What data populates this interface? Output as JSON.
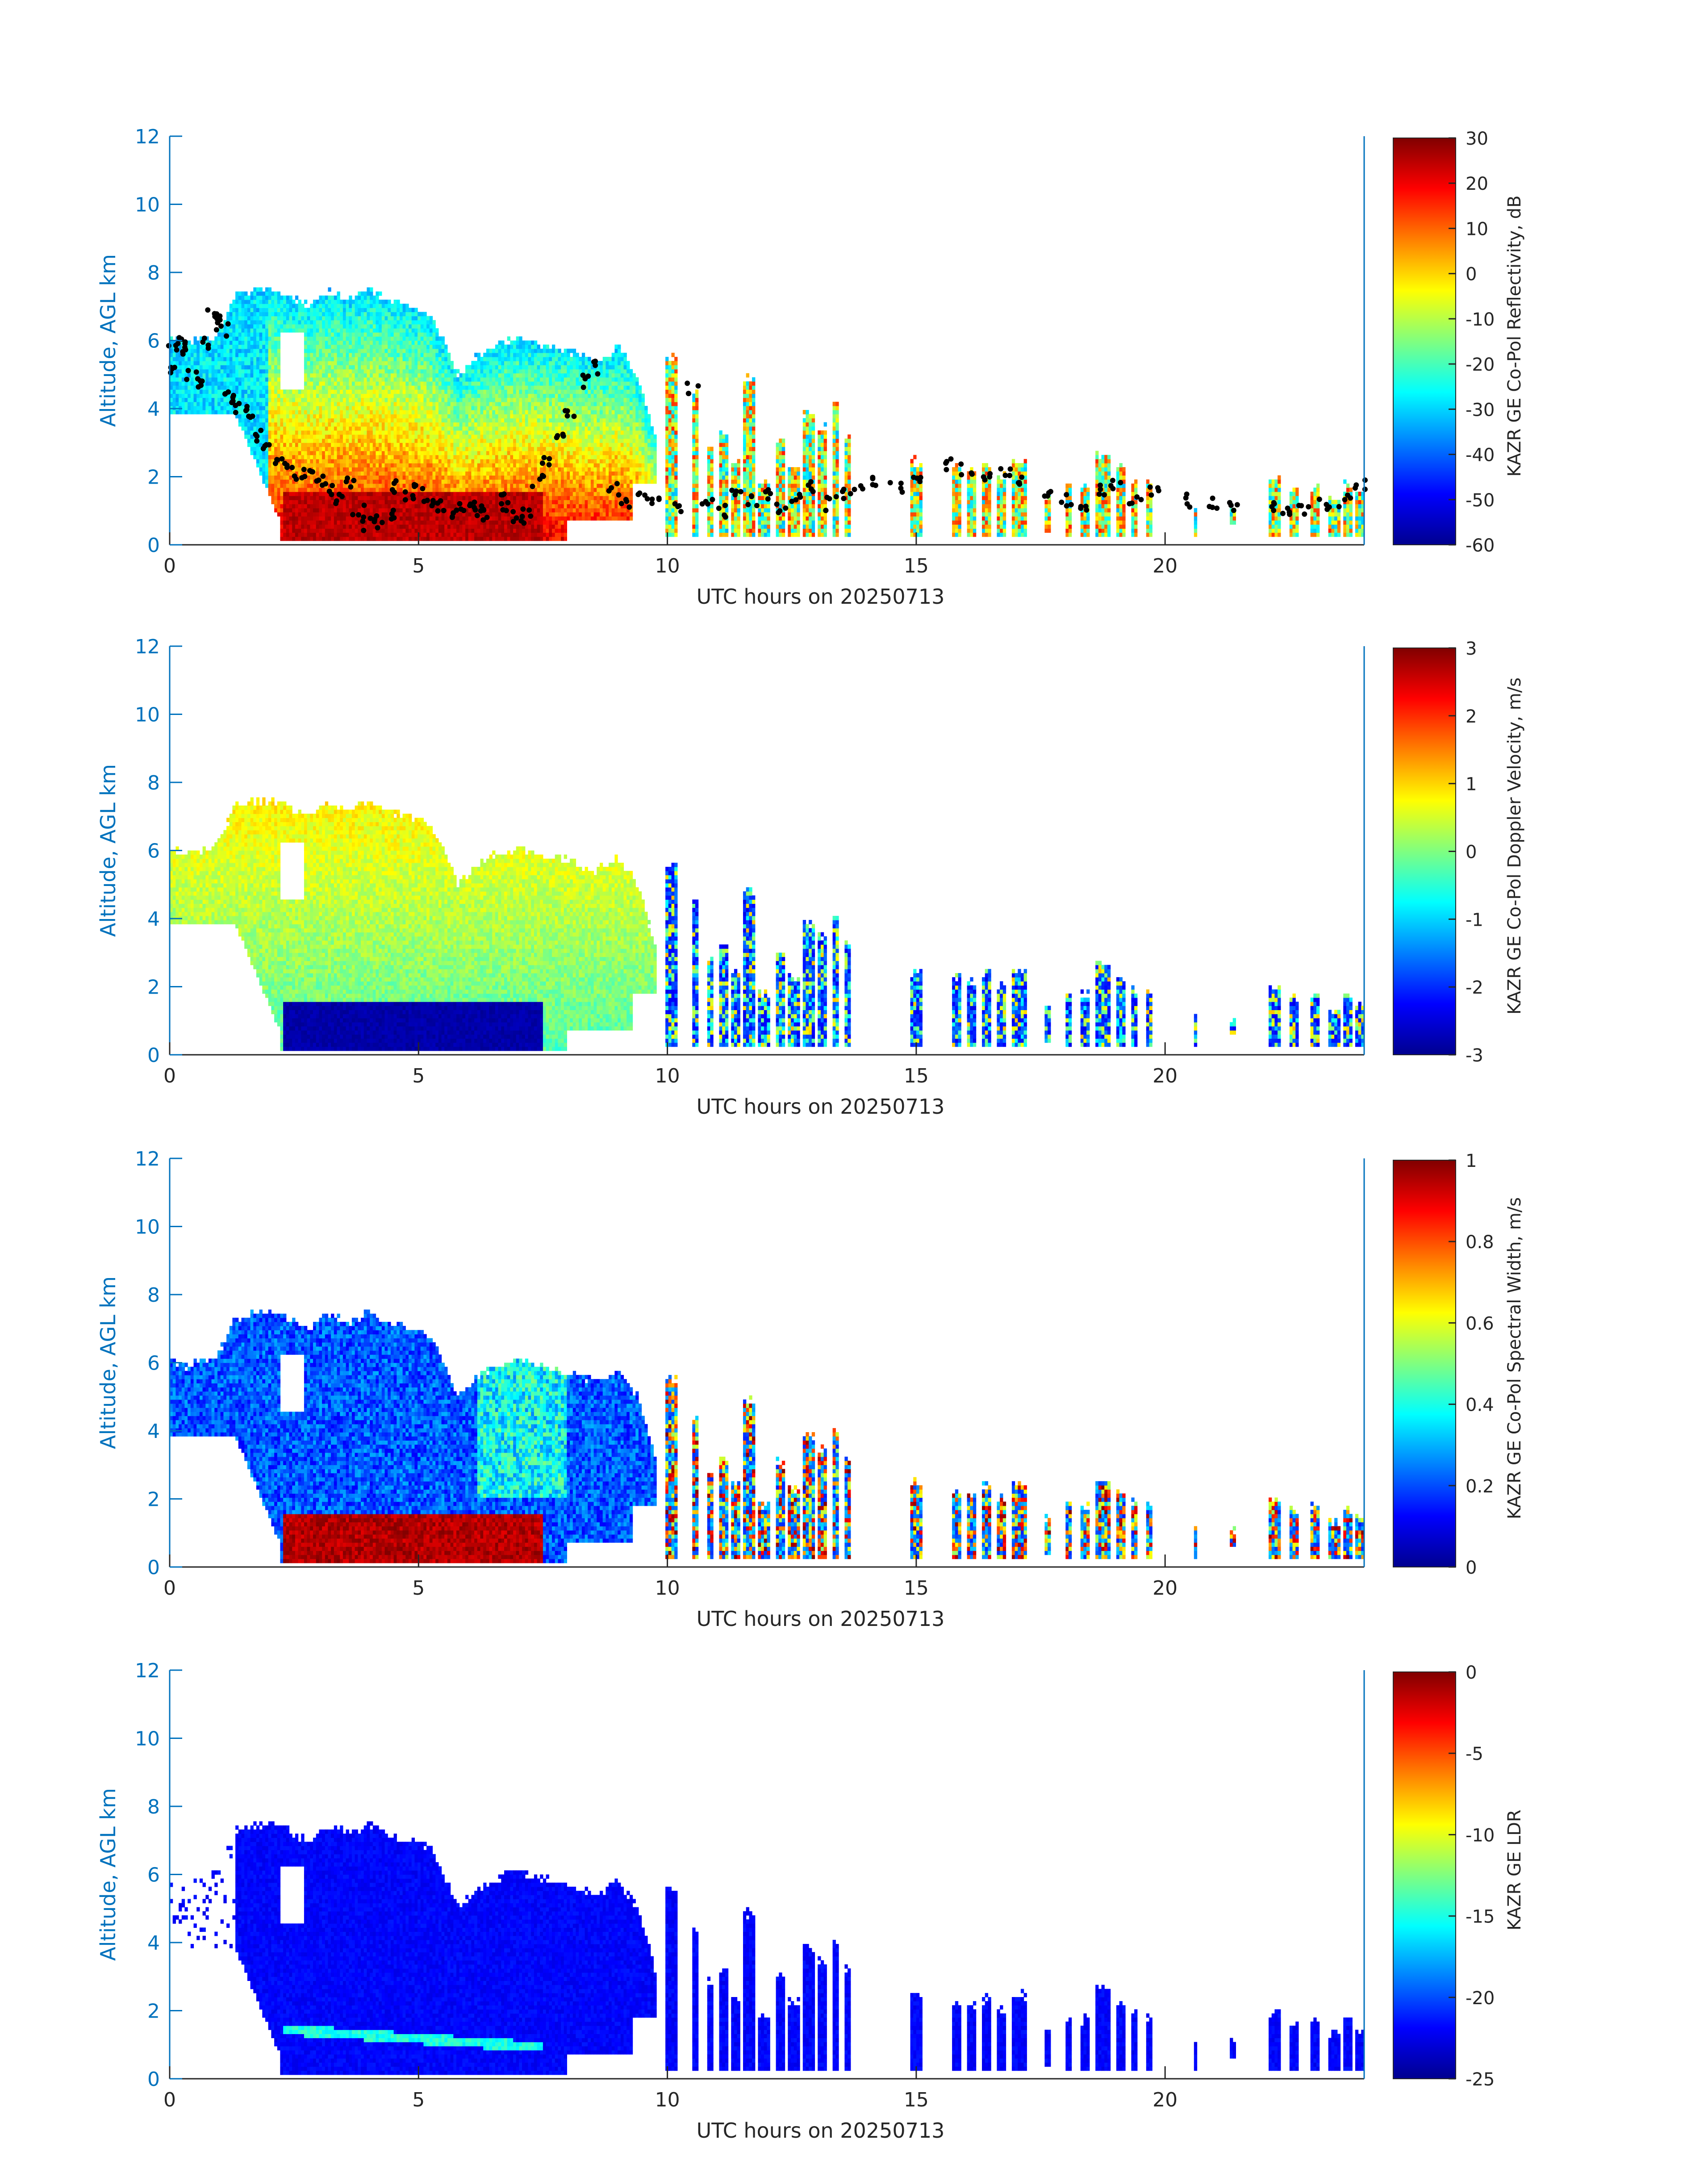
{
  "colors": {
    "axis": "#0072bd",
    "text": "#262626",
    "bg": "#ffffff",
    "marker": "#000000",
    "colormap": "jet"
  },
  "chart_data": [
    {
      "type": "heatmap",
      "title": "",
      "xlabel": "UTC hours on 20250713",
      "ylabel": "Altitude, AGL km",
      "xlim": [
        0,
        24
      ],
      "ylim": [
        0,
        12
      ],
      "xticks": [
        "0",
        "5",
        "10",
        "15",
        "20"
      ],
      "yticks": [
        "0",
        "2",
        "4",
        "6",
        "8",
        "10",
        "12"
      ],
      "colorbar": {
        "label": "KAZR GE Co-Pol Reflectivity, dB",
        "range": [
          -60,
          30
        ],
        "ticks": [
          "30",
          "20",
          "10",
          "0",
          "-10",
          "-20",
          "-30",
          "-40",
          "-50",
          "-60"
        ]
      },
      "cloud_base_markers": true,
      "cloud_base_points": [
        [
          0.0,
          5.2
        ],
        [
          0.1,
          5.8
        ],
        [
          0.2,
          6.0
        ],
        [
          0.3,
          5.6
        ],
        [
          0.45,
          5.0
        ],
        [
          0.6,
          4.8
        ],
        [
          0.75,
          5.9
        ],
        [
          0.85,
          6.7
        ],
        [
          0.95,
          6.6
        ],
        [
          1.05,
          6.3
        ],
        [
          1.15,
          4.4
        ],
        [
          1.3,
          4.2
        ],
        [
          1.45,
          4.0
        ],
        [
          1.6,
          3.8
        ],
        [
          1.8,
          3.2
        ],
        [
          2.0,
          2.8
        ],
        [
          2.2,
          2.4
        ],
        [
          2.4,
          2.2
        ],
        [
          2.6,
          2.1
        ],
        [
          2.8,
          2.0
        ],
        [
          3.0,
          1.9
        ],
        [
          3.2,
          1.6
        ],
        [
          3.4,
          1.4
        ],
        [
          3.6,
          1.9
        ],
        [
          3.8,
          1.0
        ],
        [
          4.0,
          0.6
        ],
        [
          4.2,
          0.7
        ],
        [
          4.4,
          0.9
        ],
        [
          4.6,
          1.7
        ],
        [
          4.8,
          1.5
        ],
        [
          5.0,
          1.6
        ],
        [
          5.2,
          1.3
        ],
        [
          5.4,
          1.1
        ],
        [
          5.6,
          0.9
        ],
        [
          5.8,
          1.2
        ],
        [
          6.0,
          1.3
        ],
        [
          6.2,
          1.0
        ],
        [
          6.4,
          0.9
        ],
        [
          6.6,
          1.4
        ],
        [
          6.8,
          1.1
        ],
        [
          7.0,
          0.8
        ],
        [
          7.2,
          1.0
        ],
        [
          7.4,
          1.9
        ],
        [
          7.6,
          2.4
        ],
        [
          7.8,
          3.2
        ],
        [
          8.0,
          3.9
        ],
        [
          8.3,
          4.8
        ],
        [
          8.6,
          5.2
        ],
        [
          8.9,
          1.6
        ],
        [
          9.2,
          1.3
        ],
        [
          9.5,
          1.5
        ],
        [
          9.8,
          1.2
        ],
        [
          10.2,
          1.1
        ],
        [
          10.5,
          4.6
        ],
        [
          10.8,
          1.2
        ],
        [
          11.1,
          1.0
        ],
        [
          11.4,
          1.6
        ],
        [
          11.7,
          1.3
        ],
        [
          12.0,
          1.5
        ],
        [
          12.3,
          1.1
        ],
        [
          12.6,
          1.4
        ],
        [
          12.9,
          1.7
        ],
        [
          13.2,
          1.2
        ],
        [
          13.5,
          1.5
        ],
        [
          13.8,
          1.6
        ],
        [
          14.2,
          1.8
        ],
        [
          14.6,
          1.7
        ],
        [
          15.0,
          1.9
        ],
        [
          15.6,
          2.4
        ],
        [
          16.0,
          2.2
        ],
        [
          16.4,
          2.0
        ],
        [
          16.8,
          2.1
        ],
        [
          17.1,
          1.8
        ],
        [
          17.6,
          1.5
        ],
        [
          18.0,
          1.3
        ],
        [
          18.4,
          1.2
        ],
        [
          18.7,
          1.6
        ],
        [
          19.0,
          1.8
        ],
        [
          19.4,
          1.4
        ],
        [
          19.8,
          1.5
        ],
        [
          20.5,
          1.3
        ],
        [
          21.0,
          1.2
        ],
        [
          21.4,
          1.1
        ],
        [
          22.1,
          1.2
        ],
        [
          22.4,
          1.0
        ],
        [
          22.8,
          1.1
        ],
        [
          23.2,
          1.2
        ],
        [
          23.6,
          1.3
        ],
        [
          23.9,
          1.8
        ]
      ]
    },
    {
      "type": "heatmap",
      "title": "",
      "xlabel": "UTC hours on 20250713",
      "ylabel": "Altitude, AGL km",
      "xlim": [
        0,
        24
      ],
      "ylim": [
        0,
        12
      ],
      "xticks": [
        "0",
        "5",
        "10",
        "15",
        "20"
      ],
      "yticks": [
        "0",
        "2",
        "4",
        "6",
        "8",
        "10",
        "12"
      ],
      "colorbar": {
        "label": "KAZR GE Co-Pol Doppler Velocity, m/s",
        "range": [
          -3,
          3
        ],
        "ticks": [
          "3",
          "2",
          "1",
          "0",
          "-1",
          "-2",
          "-3"
        ]
      }
    },
    {
      "type": "heatmap",
      "title": "",
      "xlabel": "UTC hours on 20250713",
      "ylabel": "Altitude, AGL km",
      "xlim": [
        0,
        24
      ],
      "ylim": [
        0,
        12
      ],
      "xticks": [
        "0",
        "5",
        "10",
        "15",
        "20"
      ],
      "yticks": [
        "0",
        "2",
        "4",
        "6",
        "8",
        "10",
        "12"
      ],
      "colorbar": {
        "label": "KAZR GE Co-Pol Spectral Width, m/s",
        "range": [
          0,
          1
        ],
        "ticks": [
          "1",
          "0.8",
          "0.6",
          "0.4",
          "0.2",
          "0"
        ]
      }
    },
    {
      "type": "heatmap",
      "title": "",
      "xlabel": "UTC hours on 20250713",
      "ylabel": "Altitude, AGL km",
      "xlim": [
        0,
        24
      ],
      "ylim": [
        0,
        12
      ],
      "xticks": [
        "0",
        "5",
        "10",
        "15",
        "20"
      ],
      "yticks": [
        "0",
        "2",
        "4",
        "6",
        "8",
        "10",
        "12"
      ],
      "colorbar": {
        "label": "KAZR GE LDR",
        "range": [
          -25,
          0
        ],
        "ticks": [
          "0",
          "-5",
          "-10",
          "-15",
          "-20",
          "-25"
        ]
      }
    }
  ]
}
